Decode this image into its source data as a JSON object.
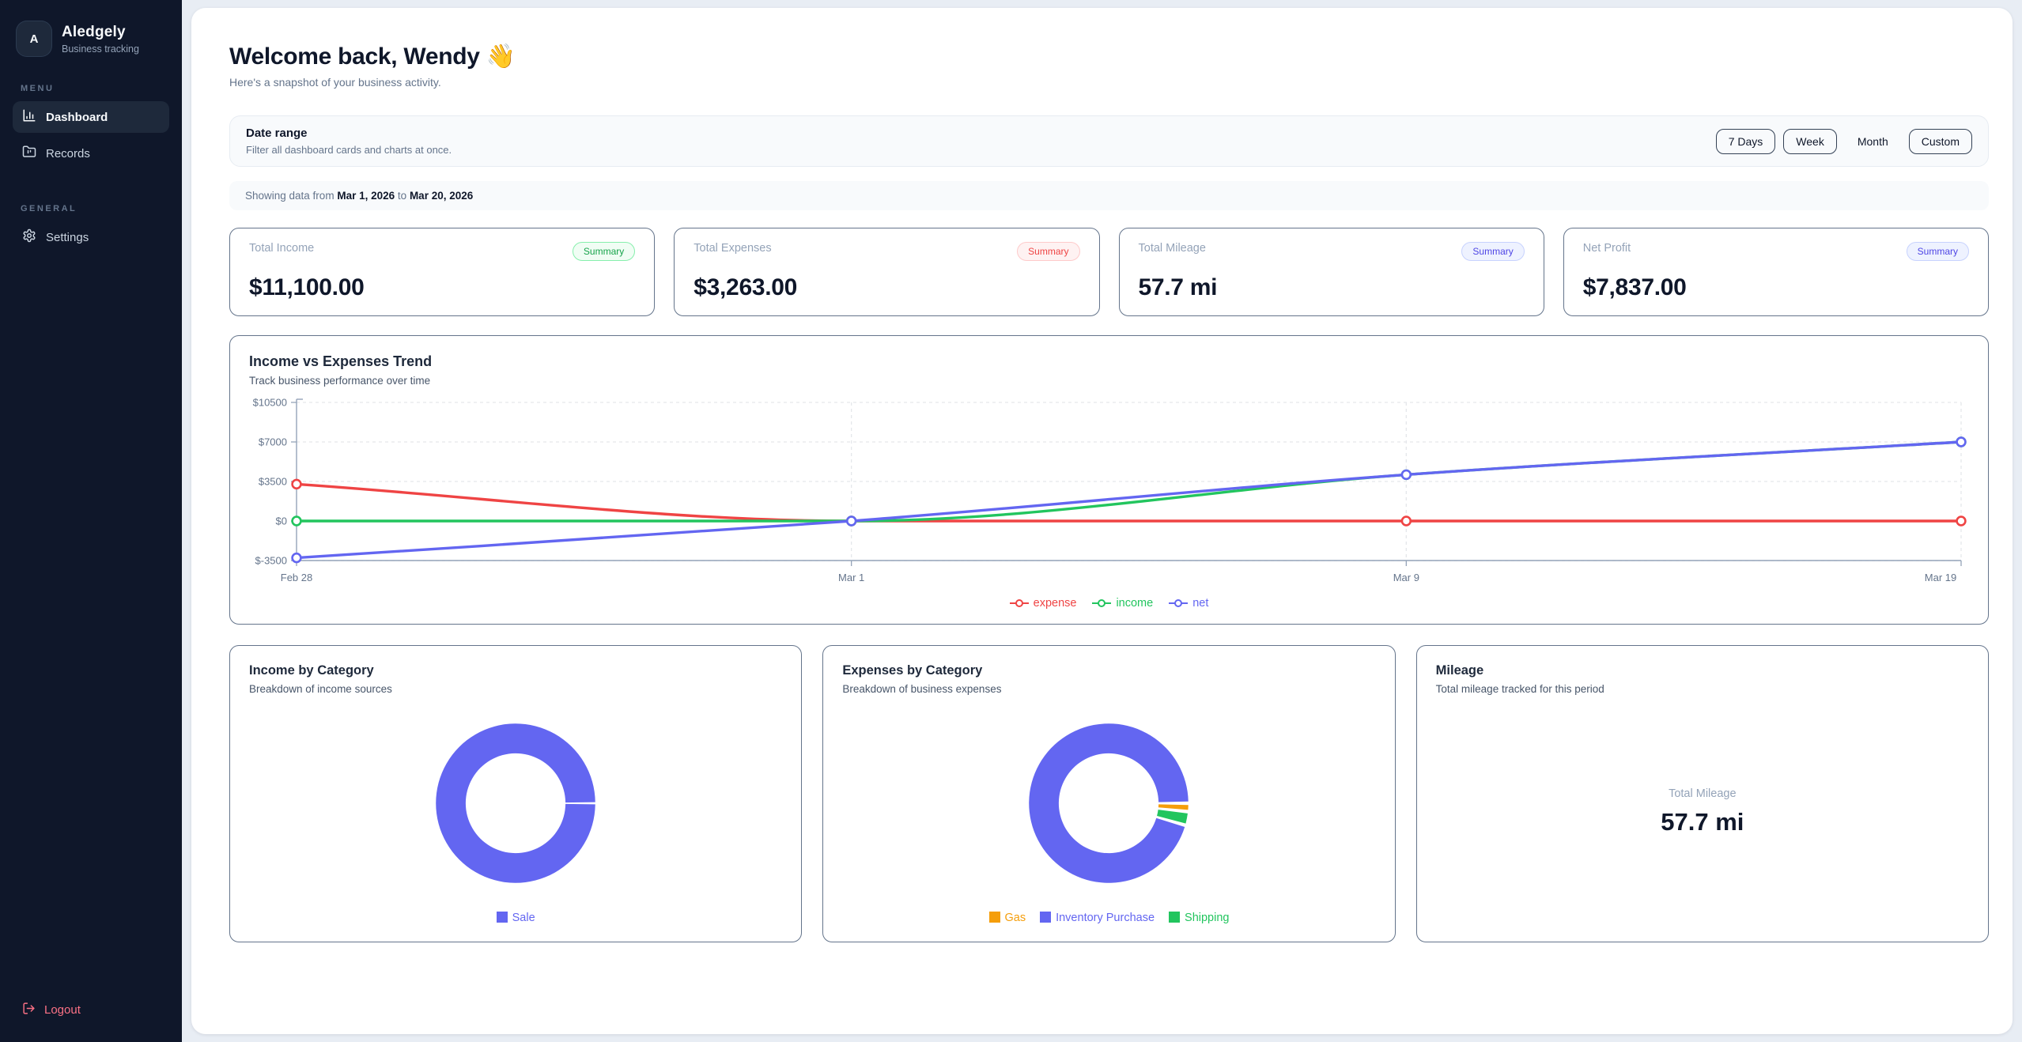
{
  "sidebar": {
    "brand": {
      "initial": "A",
      "name": "Aledgely",
      "tagline": "Business tracking"
    },
    "sections": [
      {
        "label": "MENU",
        "items": [
          {
            "label": "Dashboard",
            "icon": "bar-chart-icon",
            "active": true
          },
          {
            "label": "Records",
            "icon": "folder-icon",
            "active": false
          }
        ]
      },
      {
        "label": "GENERAL",
        "items": [
          {
            "label": "Settings",
            "icon": "gear-icon",
            "active": false
          }
        ]
      }
    ],
    "logout_label": "Logout",
    "logout_color": "#fb7185"
  },
  "header": {
    "title": "Welcome back, Wendy",
    "emoji": "👋",
    "subtitle": "Here's a snapshot of your business activity."
  },
  "date_range": {
    "title": "Date range",
    "description": "Filter all dashboard cards and charts at once.",
    "buttons": [
      {
        "label": "7 Days",
        "outlined": true
      },
      {
        "label": "Week",
        "outlined": true
      },
      {
        "label": "Month",
        "outlined": false
      },
      {
        "label": "Custom",
        "outlined": true
      }
    ]
  },
  "showing": {
    "prefix": "Showing data from",
    "from": "Mar 1, 2026",
    "joiner": "to",
    "to": "Mar 20, 2026"
  },
  "summary_cards": [
    {
      "label": "Total Income",
      "value": "$11,100.00",
      "badge": "Summary",
      "badge_color": "green"
    },
    {
      "label": "Total Expenses",
      "value": "$3,263.00",
      "badge": "Summary",
      "badge_color": "red"
    },
    {
      "label": "Total Mileage",
      "value": "57.7 mi",
      "badge": "Summary",
      "badge_color": "indigo"
    },
    {
      "label": "Net Profit",
      "value": "$7,837.00",
      "badge": "Summary",
      "badge_color": "indigo"
    }
  ],
  "chart_data": [
    {
      "id": "trend",
      "type": "line",
      "title": "Income vs Expenses Trend",
      "subtitle": "Track business performance over time",
      "x": [
        "Feb 28",
        "Mar 1",
        "Mar 9",
        "Mar 19"
      ],
      "series": [
        {
          "name": "expense",
          "color": "#ef4444",
          "values": [
            3263,
            0,
            0,
            0
          ]
        },
        {
          "name": "income",
          "color": "#22c55e",
          "values": [
            0,
            0,
            4100,
            7000
          ]
        },
        {
          "name": "net",
          "color": "#6366f1",
          "values": [
            -3263,
            0,
            4100,
            7000
          ]
        }
      ],
      "y_ticks": [
        10500,
        7000,
        3500,
        0,
        -3500
      ],
      "y_tick_labels": [
        "$10500",
        "$7000",
        "$3500",
        "$0",
        "$-3500"
      ],
      "ylim": [
        -3500,
        10500
      ],
      "grid": true,
      "legend_position": "bottom"
    },
    {
      "id": "income_by_category",
      "type": "pie",
      "title": "Income by Category",
      "subtitle": "Breakdown of income sources",
      "slices": [
        {
          "label": "Sale",
          "value": 11100,
          "color": "#6366f1"
        }
      ],
      "legend": [
        {
          "label": "Sale",
          "color": "#6366f1"
        }
      ]
    },
    {
      "id": "expenses_by_category",
      "type": "pie",
      "title": "Expenses by Category",
      "subtitle": "Breakdown of business expenses",
      "slices": [
        {
          "label": "Gas",
          "value": 55,
          "color": "#f59e0b"
        },
        {
          "label": "Shipping",
          "value": 90,
          "color": "#22c55e"
        },
        {
          "label": "Inventory Purchase",
          "value": 3118,
          "color": "#6366f1"
        }
      ],
      "legend": [
        {
          "label": "Gas",
          "color": "#f59e0b"
        },
        {
          "label": "Inventory Purchase",
          "color": "#6366f1"
        },
        {
          "label": "Shipping",
          "color": "#22c55e"
        }
      ]
    }
  ],
  "mileage_card": {
    "title": "Mileage",
    "subtitle": "Total mileage tracked for this period",
    "label": "Total Mileage",
    "value": "57.7 mi"
  }
}
